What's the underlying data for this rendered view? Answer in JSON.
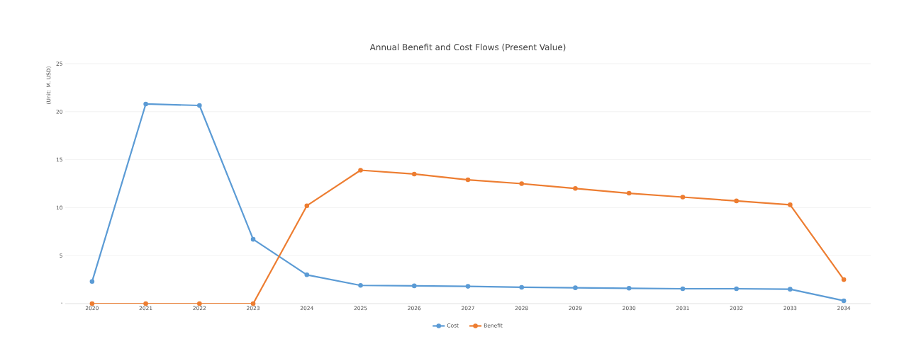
{
  "chart_data": {
    "type": "line",
    "title": "Annual Benefit and Cost Flows (Present Value)",
    "ylabel": "(Unit: M. USD)",
    "categories": [
      "2020",
      "2021",
      "2022",
      "2023",
      "2024",
      "2025",
      "2026",
      "2027",
      "2028",
      "2029",
      "2030",
      "2031",
      "2032",
      "2033",
      "2034"
    ],
    "series": [
      {
        "name": "Cost",
        "color": "#5b9bd5",
        "values": [
          2.3,
          20.8,
          20.65,
          6.7,
          3.0,
          1.9,
          1.85,
          1.8,
          1.7,
          1.65,
          1.6,
          1.55,
          1.55,
          1.5,
          0.3
        ]
      },
      {
        "name": "Benefit",
        "color": "#ed7d31",
        "values": [
          0,
          0,
          0,
          0,
          10.2,
          13.9,
          13.5,
          12.9,
          12.5,
          12.0,
          11.5,
          11.1,
          10.7,
          10.3,
          2.5
        ]
      }
    ],
    "ylim": [
      0,
      25
    ],
    "yticks": [
      {
        "value": 0,
        "label": "-"
      },
      5,
      10,
      15,
      20,
      25
    ],
    "grid": "y",
    "legend": "bottom",
    "marker": "circle",
    "line_style": "solid"
  }
}
